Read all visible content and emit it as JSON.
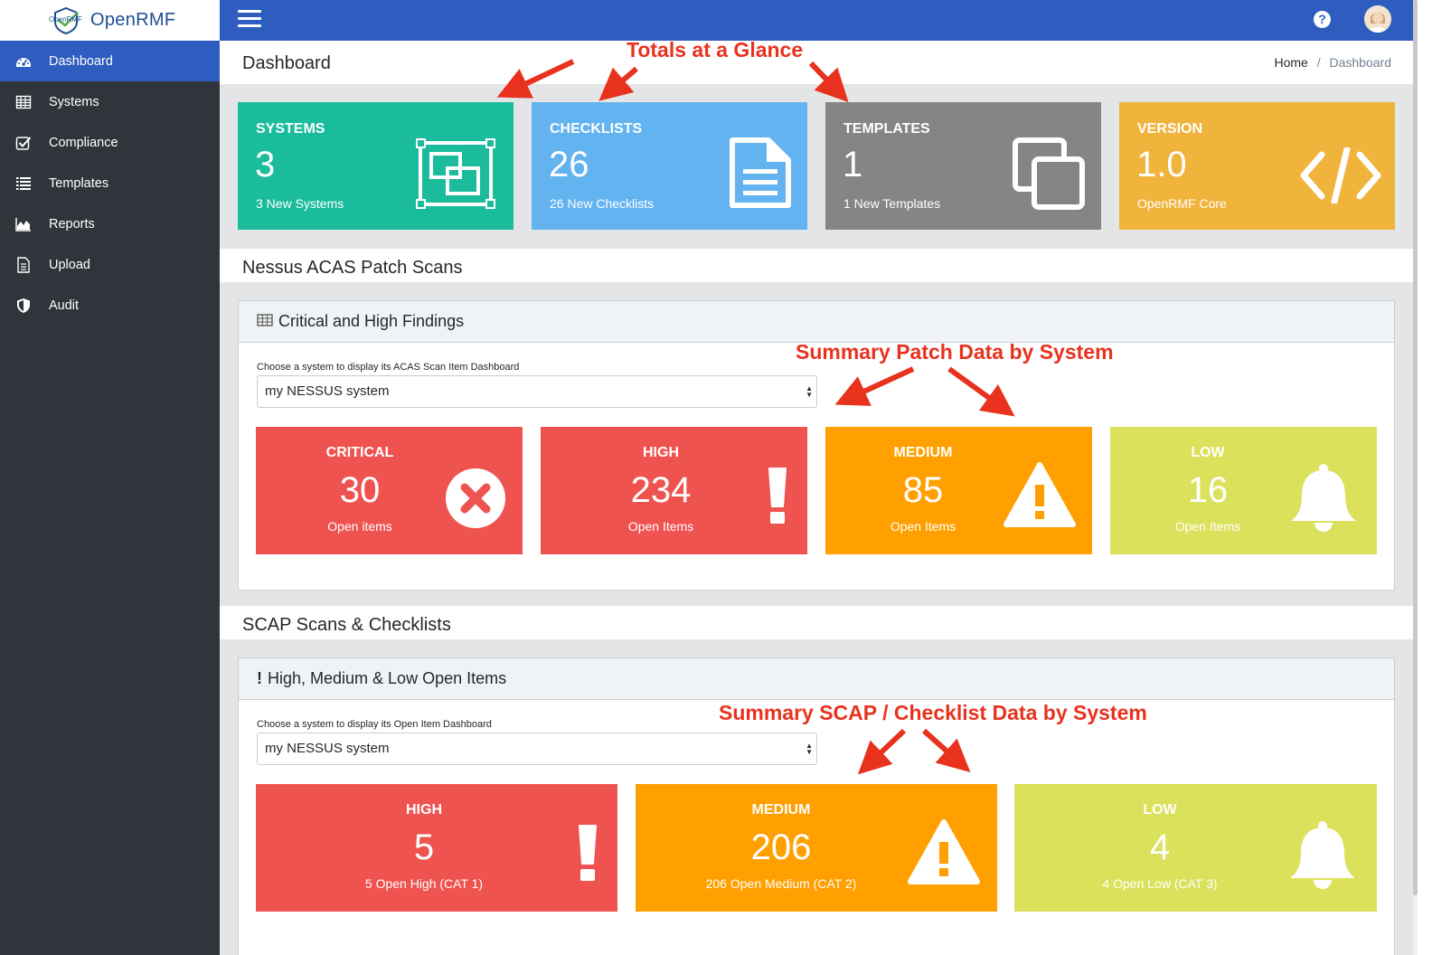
{
  "brand": {
    "name": "OpenRMF",
    "logo_text": "OpenRMF"
  },
  "sidebar": {
    "items": [
      {
        "label": "Dashboard",
        "icon": "dashboard-icon"
      },
      {
        "label": "Systems",
        "icon": "table-icon"
      },
      {
        "label": "Compliance",
        "icon": "checkbox-icon"
      },
      {
        "label": "Templates",
        "icon": "list-icon"
      },
      {
        "label": "Reports",
        "icon": "area-chart-icon"
      },
      {
        "label": "Upload",
        "icon": "file-icon"
      },
      {
        "label": "Audit",
        "icon": "shield-icon"
      }
    ]
  },
  "header": {
    "help_glyph": "?"
  },
  "page": {
    "title": "Dashboard"
  },
  "breadcrumb": {
    "home": "Home",
    "separator": "/",
    "current": "Dashboard"
  },
  "totals": {
    "systems": {
      "label": "SYSTEMS",
      "value": "3",
      "sub": "3 New Systems",
      "color": "#1abc9c",
      "icon": "object-group-icon"
    },
    "checklists": {
      "label": "CHECKLISTS",
      "value": "26",
      "sub": "26 New Checklists",
      "color": "#63b3f0",
      "icon": "document-icon"
    },
    "templates": {
      "label": "TEMPLATES",
      "value": "1",
      "sub": "1 New Templates",
      "color": "#858585",
      "icon": "copy-icon"
    },
    "version": {
      "label": "VERSION",
      "value": "1.0",
      "sub": "OpenRMF Core",
      "color": "#f0b33b",
      "icon": "code-icon"
    }
  },
  "nessus": {
    "section_title": "Nessus ACAS Patch Scans",
    "panel_title": "Critical and High Findings",
    "select_label": "Choose a system to display its ACAS Scan Item Dashboard",
    "select_value": "my NESSUS system",
    "cards": {
      "critical": {
        "label": "CRITICAL",
        "value": "30",
        "sub": "Open items",
        "color": "#ef5350",
        "icon": "times-circle-icon"
      },
      "high": {
        "label": "HIGH",
        "value": "234",
        "sub": "Open Items",
        "color": "#ef5350",
        "icon": "exclamation-icon"
      },
      "medium": {
        "label": "MEDIUM",
        "value": "85",
        "sub": "Open Items",
        "color": "#ffa000",
        "icon": "warning-icon"
      },
      "low": {
        "label": "LOW",
        "value": "16",
        "sub": "Open Items",
        "color": "#dce15c",
        "icon": "bell-icon"
      }
    }
  },
  "scap": {
    "section_title": "SCAP Scans & Checklists",
    "panel_title": "High, Medium & Low Open Items",
    "select_label": "Choose a system to display its Open Item Dashboard",
    "select_value": "my NESSUS system",
    "cards": {
      "high": {
        "label": "HIGH",
        "value": "5",
        "sub": "5 Open High (CAT 1)",
        "color": "#ef5350",
        "icon": "exclamation-icon"
      },
      "medium": {
        "label": "MEDIUM",
        "value": "206",
        "sub": "206 Open Medium (CAT 2)",
        "color": "#ffa000",
        "icon": "warning-icon"
      },
      "low": {
        "label": "LOW",
        "value": "4",
        "sub": "4 Open Low (CAT 3)",
        "color": "#dce15c",
        "icon": "bell-icon"
      }
    }
  },
  "annotations": {
    "totals": "Totals at a Glance",
    "patch": "Summary Patch Data by System",
    "scap": "Summary SCAP / Checklist Data by System"
  }
}
